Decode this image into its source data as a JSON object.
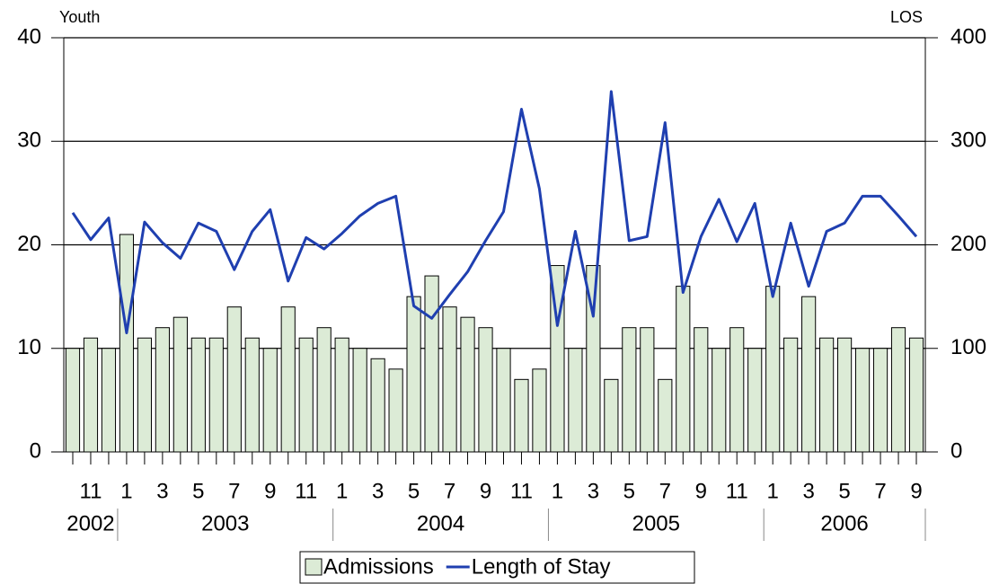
{
  "chart_data": {
    "type": "bar",
    "y_label": "Youth",
    "y2_label": "LOS",
    "category_groups": [
      {
        "label": "2002",
        "categories": [
          null,
          "11",
          null
        ]
      },
      {
        "label": "2003",
        "categories": [
          "1",
          null,
          "3",
          null,
          "5",
          null,
          "7",
          null,
          "9",
          null,
          "11",
          null
        ]
      },
      {
        "label": "2004",
        "categories": [
          "1",
          null,
          "3",
          null,
          "5",
          null,
          "7",
          null,
          "9",
          null,
          "11",
          null
        ]
      },
      {
        "label": "2005",
        "categories": [
          "1",
          null,
          "3",
          null,
          "5",
          null,
          "7",
          null,
          "9",
          null,
          "11",
          null
        ]
      },
      {
        "label": "2006",
        "categories": [
          "1",
          null,
          "3",
          null,
          "5",
          null,
          "7",
          null,
          "9"
        ]
      }
    ],
    "series": [
      {
        "name": "Admissions",
        "type": "bar",
        "color": "#dcebd6",
        "values": [
          10,
          11,
          10,
          21,
          11,
          12,
          13,
          11,
          11,
          14,
          11,
          10,
          14,
          11,
          12,
          11,
          10,
          9,
          8,
          15,
          17,
          14,
          13,
          12,
          10,
          7,
          8,
          18,
          10,
          18,
          7,
          12,
          12,
          7,
          16,
          12,
          10,
          12,
          10,
          16,
          11,
          15,
          11,
          11,
          10,
          10,
          12,
          11
        ]
      },
      {
        "name": "Length of Stay",
        "type": "line",
        "axis": "y2",
        "color": "#1f3fb0",
        "values": [
          231,
          205,
          226,
          115,
          222,
          202,
          187,
          221,
          213,
          176,
          213,
          234,
          165,
          207,
          196,
          211,
          228,
          240,
          247,
          141,
          129,
          152,
          174,
          204,
          232,
          331,
          254,
          122,
          213,
          131,
          348,
          204,
          208,
          318,
          154,
          208,
          244,
          203,
          240,
          150,
          221,
          160,
          213,
          221,
          247,
          247,
          228,
          208
        ]
      }
    ],
    "ylim": [
      0,
      40
    ],
    "yticks": [
      0,
      10,
      20,
      30,
      40
    ],
    "y2lim": [
      0,
      400
    ],
    "y2ticks": [
      0,
      100,
      200,
      300,
      400
    ],
    "grid": true
  }
}
